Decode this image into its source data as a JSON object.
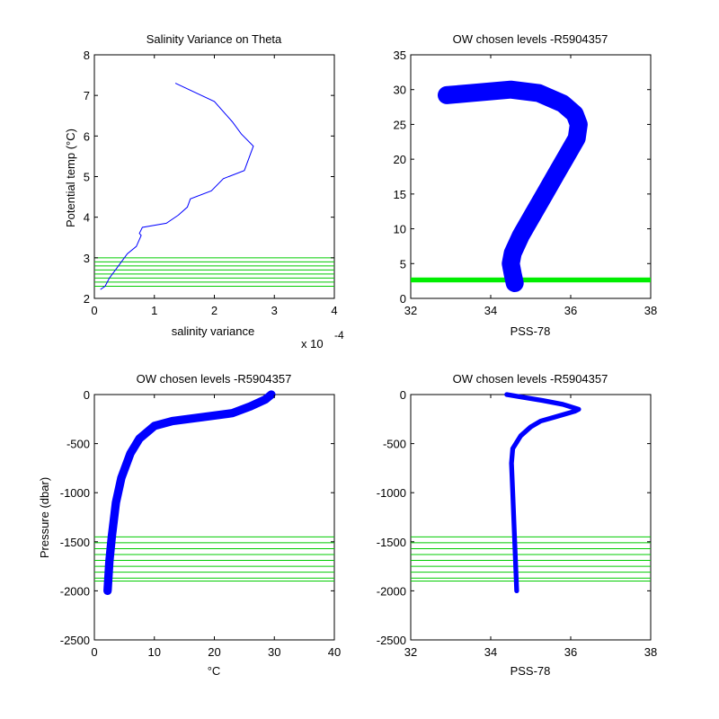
{
  "chart_data": [
    {
      "type": "line",
      "title": "Salinity Variance on Theta",
      "xlabel": "salinity variance",
      "ylabel": "Potential temp (°C)",
      "x_exponent_label": "x 10",
      "x_exponent": "-4",
      "xlim": [
        0,
        4
      ],
      "ylim": [
        2,
        8
      ],
      "xticks": [
        0,
        1,
        2,
        3,
        4
      ],
      "yticks": [
        2,
        3,
        4,
        5,
        6,
        7,
        8
      ],
      "series": [
        {
          "color": "#0000ff",
          "points": [
            [
              1.35,
              7.3
            ],
            [
              2.0,
              6.85
            ],
            [
              2.3,
              6.35
            ],
            [
              2.45,
              6.05
            ],
            [
              2.65,
              5.75
            ],
            [
              2.5,
              5.15
            ],
            [
              2.15,
              4.95
            ],
            [
              1.95,
              4.65
            ],
            [
              1.6,
              4.45
            ],
            [
              1.55,
              4.25
            ],
            [
              1.4,
              4.05
            ],
            [
              1.2,
              3.85
            ],
            [
              0.8,
              3.75
            ],
            [
              0.75,
              3.6
            ],
            [
              0.78,
              3.55
            ],
            [
              0.7,
              3.28
            ],
            [
              0.55,
              3.1
            ],
            [
              0.45,
              2.9
            ],
            [
              0.35,
              2.7
            ],
            [
              0.25,
              2.5
            ],
            [
              0.18,
              2.3
            ],
            [
              0.1,
              2.22
            ]
          ]
        }
      ],
      "hlines": {
        "color": "#00cc00",
        "values": [
          2.3,
          2.4,
          2.5,
          2.6,
          2.7,
          2.8,
          2.9,
          3.0
        ]
      }
    },
    {
      "type": "line",
      "title": "OW chosen levels -R5904357",
      "xlabel": "PSS-78",
      "ylabel": "",
      "xlim": [
        32,
        38
      ],
      "ylim": [
        0,
        35
      ],
      "xticks": [
        32,
        34,
        36,
        38
      ],
      "yticks": [
        0,
        5,
        10,
        15,
        20,
        25,
        30,
        35
      ],
      "series": [
        {
          "color": "#0000ff",
          "points": [
            [
              34.6,
              2.2
            ],
            [
              34.55,
              3.5
            ],
            [
              34.5,
              5
            ],
            [
              34.55,
              6.5
            ],
            [
              34.75,
              9
            ],
            [
              35.05,
              12
            ],
            [
              35.35,
              15
            ],
            [
              35.65,
              18
            ],
            [
              35.95,
              21
            ],
            [
              36.15,
              23
            ],
            [
              36.2,
              25
            ],
            [
              36.1,
              26.5
            ],
            [
              35.8,
              28
            ],
            [
              35.2,
              29.5
            ],
            [
              34.5,
              30
            ],
            [
              33.5,
              29.5
            ],
            [
              32.9,
              29.2
            ]
          ],
          "band": 0.45
        }
      ],
      "hband": {
        "color": "#00ee00",
        "from": 2.3,
        "to": 3.0
      }
    },
    {
      "type": "line",
      "title": "OW chosen levels -R5904357",
      "xlabel": "°C",
      "ylabel": "Pressure (dbar)",
      "xlim": [
        0,
        40
      ],
      "ylim": [
        -2500,
        0
      ],
      "xticks": [
        0,
        10,
        20,
        30,
        40
      ],
      "yticks": [
        -2500,
        -2000,
        -1500,
        -1000,
        -500,
        0
      ],
      "series": [
        {
          "color": "#0000ff",
          "points": [
            [
              2.2,
              -2000
            ],
            [
              2.5,
              -1700
            ],
            [
              2.9,
              -1450
            ],
            [
              3.6,
              -1100
            ],
            [
              4.5,
              -850
            ],
            [
              6,
              -600
            ],
            [
              7.5,
              -450
            ],
            [
              10,
              -320
            ],
            [
              13,
              -270
            ],
            [
              18,
              -230
            ],
            [
              23,
              -190
            ],
            [
              26,
              -120
            ],
            [
              28.5,
              -50
            ],
            [
              29.5,
              0
            ]
          ],
          "band": 1.4
        }
      ],
      "hlines": {
        "color": "#00cc00",
        "values": [
          -1450,
          -1510,
          -1570,
          -1630,
          -1690,
          -1750,
          -1810,
          -1870,
          -1900
        ]
      }
    },
    {
      "type": "line",
      "title": "OW chosen levels -R5904357",
      "xlabel": "PSS-78",
      "ylabel": "",
      "xlim": [
        32,
        38
      ],
      "ylim": [
        -2500,
        0
      ],
      "xticks": [
        32,
        34,
        36,
        38
      ],
      "yticks": [
        -2500,
        -2000,
        -1500,
        -1000,
        -500,
        0
      ],
      "series": [
        {
          "color": "#0000ff",
          "points": [
            [
              34.65,
              -2000
            ],
            [
              34.6,
              -1500
            ],
            [
              34.55,
              -1000
            ],
            [
              34.52,
              -700
            ],
            [
              34.55,
              -550
            ],
            [
              34.75,
              -420
            ],
            [
              35.0,
              -330
            ],
            [
              35.25,
              -270
            ],
            [
              35.6,
              -230
            ],
            [
              36.1,
              -170
            ],
            [
              36.2,
              -150
            ],
            [
              35.8,
              -100
            ],
            [
              35.3,
              -60
            ],
            [
              34.7,
              -20
            ],
            [
              34.4,
              0
            ]
          ],
          "band": 0.12
        }
      ],
      "hlines": {
        "color": "#00cc00",
        "values": [
          -1450,
          -1510,
          -1570,
          -1630,
          -1690,
          -1750,
          -1810,
          -1870,
          -1900
        ]
      }
    }
  ]
}
